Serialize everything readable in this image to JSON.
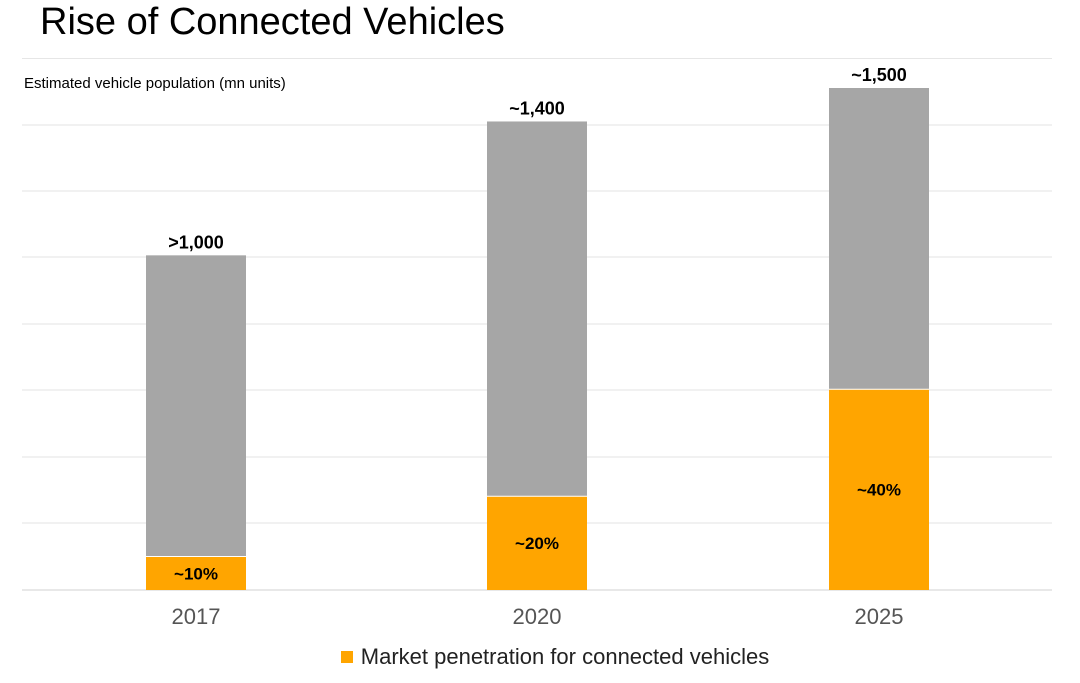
{
  "title": "Rise of Connected Vehicles",
  "chart_data": {
    "type": "bar",
    "stacked": true,
    "ylabel": "Estimated vehicle population (mn units)",
    "categories": [
      "2017",
      "2020",
      "2025"
    ],
    "total_values": [
      1000,
      1400,
      1500
    ],
    "total_labels": [
      ">1,000",
      "~1,400",
      "~1,500"
    ],
    "penetration_pct": [
      10,
      20,
      40
    ],
    "penetration_labels": [
      "~10%",
      "~20%",
      "~40%"
    ],
    "series": [
      {
        "name": "Market penetration for connected vehicles",
        "color": "#FFA500",
        "values": [
          100,
          280,
          600
        ]
      },
      {
        "color": "#A6A6A6",
        "values": [
          900,
          1120,
          900
        ]
      }
    ],
    "ylim": [
      0,
      1500
    ],
    "grid": true,
    "legend": "bottom"
  },
  "legend": {
    "label": "Market penetration for connected vehicles",
    "color": "#FFA500"
  }
}
